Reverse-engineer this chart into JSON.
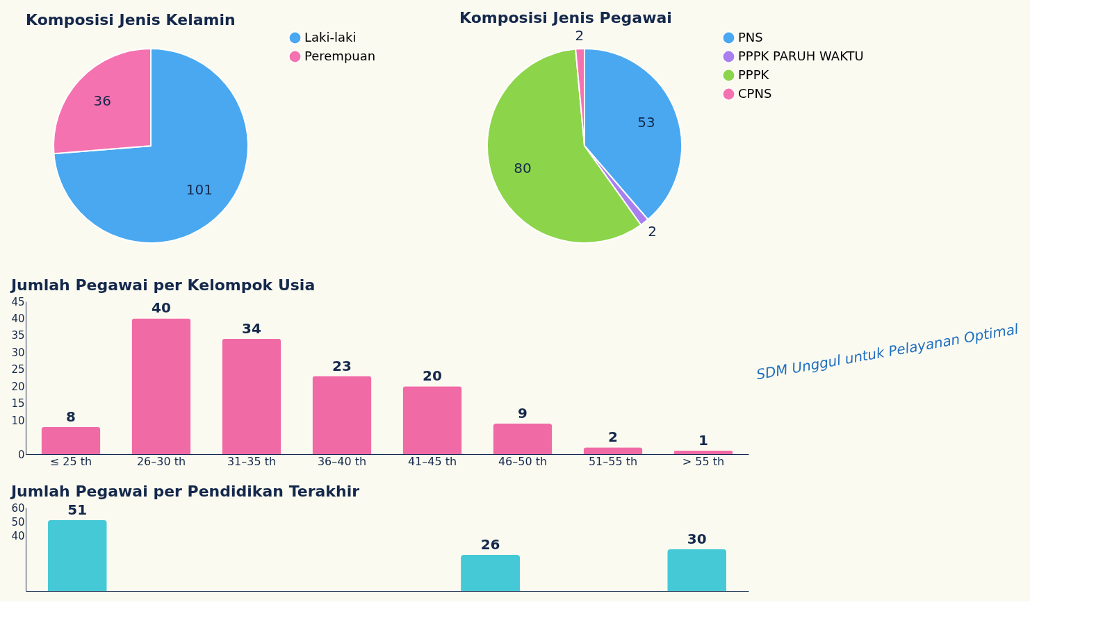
{
  "chart_data": [
    {
      "type": "pie",
      "title": "Komposisi Jenis Kelamin",
      "categories": [
        "Laki-laki",
        "Perempuan"
      ],
      "values": [
        101,
        36
      ],
      "colors": [
        "#4aa8f0",
        "#f472b0"
      ],
      "data_labels": true,
      "legend": "right"
    },
    {
      "type": "pie",
      "title": "Komposisi Jenis Pegawai",
      "categories": [
        "PNS",
        "PPPK PARUH WAKTU",
        "PPPK",
        "CPNS"
      ],
      "values": [
        53,
        2,
        80,
        2
      ],
      "colors": [
        "#4aa8f0",
        "#a97ff0",
        "#8cd44a",
        "#f472b0"
      ],
      "data_labels": true,
      "legend": "right"
    },
    {
      "type": "bar",
      "title": "Jumlah Pegawai per Kelompok Usia",
      "categories": [
        "≤ 25 th",
        "26–30 th",
        "31–35 th",
        "36–40 th",
        "41–45 th",
        "46–50 th",
        "51–55 th",
        "> 55 th"
      ],
      "values": [
        8,
        40,
        34,
        23,
        20,
        9,
        2,
        1
      ],
      "color": "#f06aa5",
      "ylim": [
        0,
        45
      ],
      "yticks": [
        0,
        10,
        15,
        20,
        25,
        30,
        35,
        40,
        45
      ],
      "data_labels": true,
      "grid": false,
      "annotations": [
        "SDM Unggul untuk Pelayanan Optimal"
      ]
    },
    {
      "type": "bar",
      "title": "Jumlah Pegawai per Pendidikan Terakhir",
      "categories": [
        null,
        null,
        null,
        null,
        null,
        null,
        null
      ],
      "values": [
        51,
        null,
        null,
        null,
        26,
        null,
        30
      ],
      "color": "#45c9d6",
      "ylim": [
        0,
        60
      ],
      "yticks": [
        40,
        50,
        60
      ],
      "data_labels": true,
      "grid": false,
      "tick_labels": "y"
    }
  ]
}
